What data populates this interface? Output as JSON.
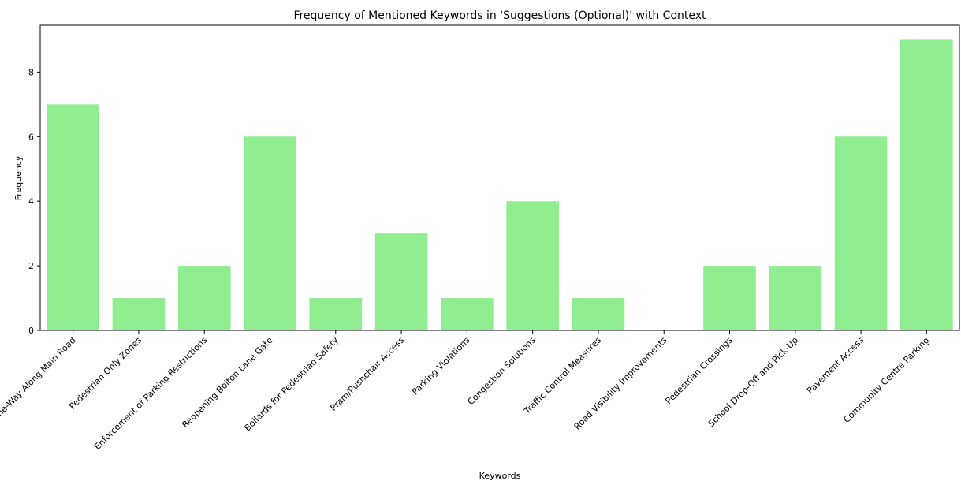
{
  "chart_data": {
    "type": "bar",
    "title": "Frequency of Mentioned Keywords in 'Suggestions (Optional)' with Context",
    "xlabel": "Keywords",
    "ylabel": "Frequency",
    "categories": [
      "One-Way Along Main Road",
      "Pedestrian Only Zones",
      "Enforcement of Parking Restrictions",
      "Reopening Bolton Lane Gate",
      "Bollards for Pedestrian Safety",
      "Pram/Pushchair Access",
      "Parking Violations",
      "Congestion Solutions",
      "Traffic Control Measures",
      "Road Visibility Improvements",
      "Pedestrian Crossings",
      "School Drop-Off and Pick-Up",
      "Pavement Access",
      "Community Centre Parking"
    ],
    "values": [
      7,
      1,
      2,
      6,
      1,
      3,
      1,
      4,
      1,
      0,
      2,
      2,
      6,
      9
    ],
    "yticks": [
      0,
      2,
      4,
      6,
      8
    ],
    "ylim": [
      0,
      9.45
    ],
    "grid": false,
    "bar_color": "#90ee90"
  }
}
